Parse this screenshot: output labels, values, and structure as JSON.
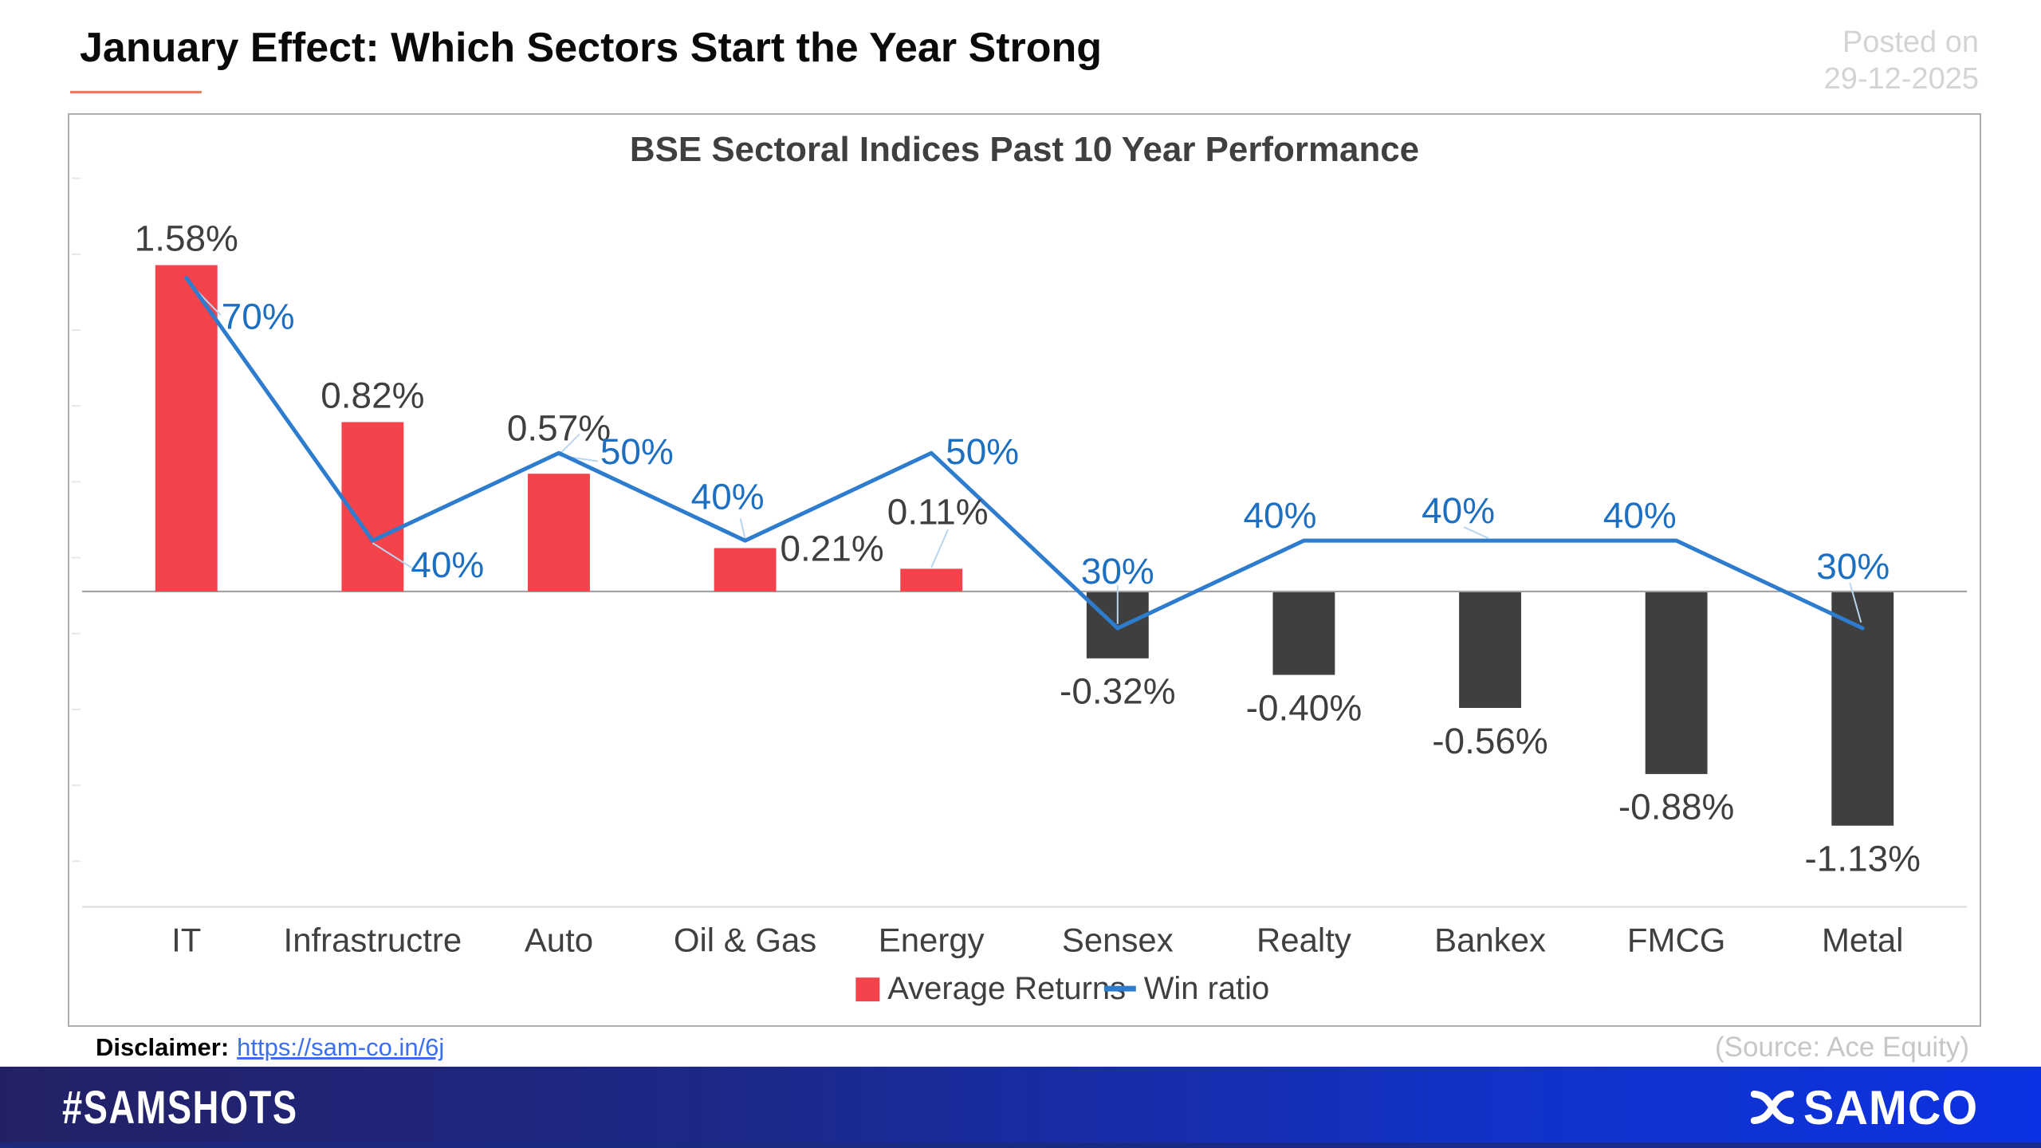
{
  "header": {
    "title": "January Effect: Which Sectors Start the Year Strong",
    "posted_on": {
      "line1": "Posted on",
      "line2": "29-12-2025"
    }
  },
  "chart_data": {
    "type": "bar",
    "subtype": "bar-line-combo",
    "title": "BSE Sectoral Indices Past 10 Year Performance",
    "categories": [
      "IT",
      "Infrastructre",
      "Auto",
      "Oil & Gas",
      "Energy",
      "Sensex",
      "Realty",
      "Bankex",
      "FMCG",
      "Metal"
    ],
    "series": [
      {
        "name": "Average Returns",
        "type": "bar",
        "unit": "percent",
        "values": [
          1.58,
          0.82,
          0.57,
          0.21,
          0.11,
          -0.32,
          -0.4,
          -0.56,
          -0.88,
          -1.13
        ],
        "labels": [
          "1.58%",
          "0.82%",
          "0.57%",
          "0.21%",
          "0.11%",
          "-0.32%",
          "-0.40%",
          "-0.56%",
          "-0.88%",
          "-1.13%"
        ]
      },
      {
        "name": "Win ratio",
        "type": "line",
        "unit": "percent",
        "values": [
          70,
          40,
          50,
          40,
          50,
          30,
          40,
          40,
          40,
          30
        ],
        "labels": [
          "70%",
          "40%",
          "50%",
          "40%",
          "50%",
          "30%",
          "40%",
          "40%",
          "40%",
          "30%"
        ]
      }
    ],
    "colors": {
      "bar_positive": "#f4434a",
      "bar_negative": "#3f3f3f",
      "line": "#2e7ccd",
      "value_label": "#3f3f3f",
      "win_label": "#1d6fc2"
    },
    "legend_position": "bottom",
    "grid": false,
    "axis_line_color": "#9d9d9d"
  },
  "disclaimer": {
    "label": "Disclaimer:",
    "link_text": "https://sam-co.in/6j"
  },
  "source": "(Source: Ace Equity)",
  "footer": {
    "hashtag": "#SAMSHOTS",
    "brand": "SAMCO"
  }
}
